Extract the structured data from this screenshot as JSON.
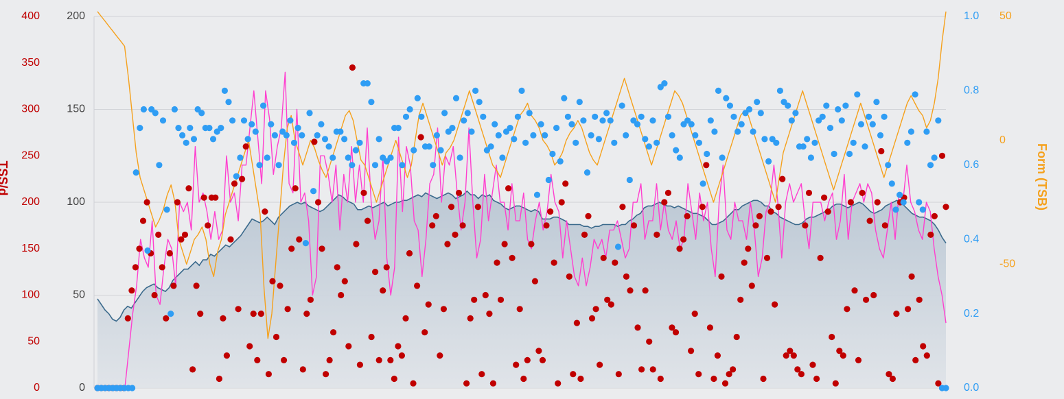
{
  "chart_data": {
    "type": "line",
    "title": "",
    "grid": true,
    "axes": {
      "tss": {
        "ticks": [
          "0",
          "50",
          "100",
          "150",
          "200",
          "250",
          "300",
          "350",
          "400"
        ],
        "range": [
          0,
          400
        ],
        "color": "#c00000",
        "label": "TSS/d"
      },
      "fitness": {
        "ticks": [
          "0",
          "50",
          "100",
          "150",
          "200"
        ],
        "range": [
          0,
          200
        ],
        "color": "#444444"
      },
      "intensity": {
        "ticks": [
          "0.0",
          "0.2",
          "0.4",
          "0.6",
          "0.8",
          "1.0"
        ],
        "range": [
          0,
          1
        ],
        "color": "#2f9df4"
      },
      "form": {
        "ticks": [
          "-50",
          "0",
          "50"
        ],
        "range": [
          -100,
          50
        ],
        "color": "#f5a11c",
        "label": "Form (TSB)"
      }
    },
    "series": [
      {
        "kind": "area",
        "axis": "fitness",
        "color": "#3b6a8c",
        "fill": "#c9d4dd",
        "values": [
          48,
          45,
          42,
          40,
          37,
          36,
          38,
          42,
          44,
          43,
          46,
          49,
          52,
          54,
          55,
          56,
          54,
          53,
          52,
          54,
          58,
          60,
          62,
          64,
          64,
          66,
          68,
          66,
          69,
          69,
          72,
          71,
          73,
          75,
          77,
          76,
          78,
          80,
          82,
          85,
          88,
          91,
          90,
          89,
          90,
          92,
          90,
          88,
          92,
          94,
          96,
          98,
          99,
          100,
          99,
          100,
          98,
          97,
          96,
          95,
          96,
          98,
          100,
          102,
          104,
          103,
          101,
          100,
          99,
          96,
          96,
          97,
          98,
          97,
          98,
          99,
          100,
          98,
          99,
          100,
          100,
          101,
          101,
          102,
          103,
          104,
          103,
          105,
          104,
          103,
          102,
          103,
          104,
          105,
          104,
          102,
          103,
          104,
          106,
          104,
          104,
          102,
          104,
          103,
          104,
          101,
          100,
          99,
          97,
          96,
          97,
          98,
          98,
          97,
          96,
          95,
          96,
          95,
          91,
          91,
          91,
          92,
          92,
          91,
          90,
          88,
          88,
          88,
          88,
          87,
          87,
          86,
          87,
          87,
          88,
          88,
          88,
          88,
          87,
          88,
          88,
          90,
          91,
          93,
          94,
          97,
          98,
          98,
          99,
          100,
          99,
          98,
          98,
          97,
          98,
          97,
          96,
          95,
          94,
          94,
          93,
          92,
          90,
          88,
          88,
          89,
          90,
          92,
          94,
          96,
          96,
          98,
          99,
          100,
          101,
          101,
          100,
          98,
          98,
          95,
          94,
          92,
          91,
          90,
          89,
          88,
          88,
          89,
          91,
          92,
          92,
          93,
          94,
          95,
          96,
          98,
          99,
          99,
          98,
          97,
          98,
          99,
          100,
          99,
          97,
          95,
          94,
          95,
          96,
          98,
          99,
          100,
          101,
          100,
          98,
          96,
          94,
          93,
          92,
          92,
          91,
          90,
          88,
          85,
          81,
          78
        ]
      },
      {
        "kind": "line",
        "axis": "tss",
        "color": "#ff3fcf",
        "values": [
          0,
          0,
          0,
          0,
          0,
          0,
          0,
          0,
          40,
          80,
          110,
          160,
          140,
          130,
          180,
          100,
          90,
          130,
          160,
          150,
          110,
          200,
          190,
          200,
          170,
          260,
          200,
          210,
          190,
          160,
          190,
          160,
          170,
          250,
          200,
          210,
          180,
          240,
          240,
          280,
          320,
          270,
          220,
          320,
          290,
          230,
          260,
          280,
          340,
          220,
          210,
          300,
          200,
          210,
          180,
          100,
          120,
          250,
          250,
          230,
          200,
          240,
          170,
          230,
          200,
          260,
          200,
          240,
          200,
          280,
          200,
          160,
          180,
          250,
          140,
          100,
          130,
          270,
          190,
          260,
          240,
          180,
          170,
          120,
          160,
          220,
          230,
          280,
          200,
          250,
          240,
          260,
          210,
          170,
          200,
          280,
          200,
          140,
          160,
          230,
          180,
          210,
          240,
          200,
          200,
          170,
          220,
          180,
          180,
          210,
          160,
          150,
          180,
          200,
          170,
          190,
          230,
          200,
          190,
          140,
          180,
          150,
          120,
          110,
          140,
          110,
          130,
          160,
          150,
          160,
          140,
          170,
          170,
          180,
          160,
          140,
          150,
          200,
          200,
          220,
          160,
          180,
          180,
          220,
          170,
          200,
          170,
          160,
          180,
          150,
          160,
          220,
          190,
          160,
          210,
          180,
          200,
          150,
          120,
          200,
          240,
          170,
          160,
          200,
          180,
          180,
          160,
          200,
          170,
          120,
          140,
          190,
          200,
          240,
          200,
          140,
          200,
          220,
          200,
          210,
          220,
          180,
          150,
          200,
          200,
          200,
          180,
          200,
          210,
          160,
          180,
          230,
          160,
          200,
          210,
          220,
          200,
          220,
          210,
          170,
          150,
          140,
          170,
          200,
          160,
          210,
          200,
          240,
          200,
          190,
          170,
          160,
          200,
          190,
          150,
          120,
          100,
          70
        ]
      },
      {
        "kind": "line",
        "axis": "form",
        "color": "#f5a11c",
        "values": [
          52,
          50,
          48,
          46,
          44,
          42,
          40,
          38,
          25,
          10,
          -5,
          -15,
          -20,
          -25,
          -30,
          -35,
          -32,
          -28,
          -22,
          -18,
          -25,
          -40,
          -45,
          -50,
          -45,
          -40,
          -38,
          -35,
          -40,
          -50,
          -55,
          -45,
          -40,
          -30,
          -25,
          -20,
          -15,
          -10,
          -5,
          0,
          -10,
          -20,
          -30,
          -60,
          -80,
          -70,
          -50,
          -30,
          -10,
          5,
          10,
          0,
          -5,
          -10,
          -5,
          0,
          -3,
          -8,
          -12,
          -15,
          -10,
          -5,
          0,
          5,
          10,
          12,
          8,
          0,
          -8,
          -10,
          -15,
          -20,
          -25,
          -20,
          -15,
          -10,
          -5,
          0,
          -5,
          -10,
          -15,
          -10,
          0,
          10,
          15,
          10,
          5,
          0,
          -5,
          -10,
          -5,
          -3,
          0,
          5,
          10,
          15,
          20,
          15,
          10,
          5,
          0,
          -5,
          -10,
          -12,
          -15,
          -10,
          -5,
          0,
          5,
          10,
          12,
          15,
          10,
          8,
          5,
          0,
          -2,
          -5,
          -10,
          -8,
          -5,
          0,
          3,
          5,
          8,
          5,
          0,
          -5,
          -8,
          -10,
          -5,
          0,
          5,
          10,
          15,
          20,
          25,
          20,
          15,
          10,
          5,
          0,
          -5,
          -10,
          -5,
          0,
          5,
          10,
          15,
          20,
          18,
          15,
          10,
          5,
          0,
          -5,
          -10,
          -15,
          -20,
          -25,
          -20,
          -15,
          -10,
          -5,
          0,
          5,
          10,
          12,
          10,
          5,
          0,
          -5,
          -10,
          -15,
          -20,
          -25,
          -15,
          -5,
          0,
          5,
          10,
          15,
          20,
          15,
          10,
          5,
          0,
          -5,
          -10,
          -15,
          -20,
          -15,
          -10,
          -5,
          0,
          5,
          10,
          15,
          10,
          5,
          0,
          -5,
          -10,
          -15,
          -10,
          -5,
          0,
          5,
          10,
          15,
          18,
          15,
          12,
          10,
          5,
          8,
          15,
          25,
          40,
          52
        ]
      },
      {
        "kind": "scatter",
        "axis": "tss",
        "color": "#c00000",
        "values": [
          0,
          0,
          0,
          0,
          0,
          0,
          0,
          0,
          75,
          105,
          130,
          150,
          180,
          200,
          145,
          100,
          165,
          130,
          75,
          145,
          110,
          200,
          160,
          165,
          215,
          20,
          110,
          80,
          205,
          175,
          205,
          205,
          10,
          75,
          35,
          160,
          220,
          85,
          225,
          260,
          45,
          80,
          30,
          80,
          190,
          15,
          115,
          55,
          110,
          30,
          85,
          150,
          215,
          160,
          20,
          80,
          95,
          265,
          200,
          150,
          15,
          30,
          60,
          130,
          100,
          115,
          45,
          345,
          155,
          25,
          210,
          180,
          55,
          125,
          30,
          105,
          130,
          30,
          10,
          45,
          35,
          75,
          145,
          5,
          110,
          270,
          60,
          90,
          175,
          185,
          35,
          85,
          155,
          195,
          165,
          210,
          175,
          5,
          75,
          95,
          195,
          15,
          100,
          80,
          5,
          135,
          95,
          155,
          215,
          140,
          25,
          85,
          10,
          30,
          155,
          115,
          40,
          30,
          175,
          190,
          135,
          5,
          200,
          220,
          120,
          15,
          70,
          10,
          165,
          185,
          75,
          85,
          25,
          140,
          95,
          90,
          135,
          15,
          195,
          120,
          105,
          175,
          65,
          20,
          105,
          50,
          20,
          165,
          10,
          200,
          210,
          65,
          60,
          150,
          160,
          185,
          40,
          80,
          15,
          195,
          240,
          65,
          10,
          35,
          120,
          5,
          15,
          20,
          55,
          95,
          135,
          150,
          110,
          175,
          185,
          10,
          140,
          190,
          90,
          195,
          225,
          35,
          40,
          35,
          20,
          15,
          175,
          210,
          25,
          10,
          140,
          205,
          190,
          55,
          5,
          40,
          35,
          85,
          200,
          105,
          30,
          210,
          95,
          180,
          100,
          200,
          255,
          175,
          15,
          10,
          80,
          200,
          205,
          85,
          120,
          30,
          95,
          45,
          35,
          165,
          185,
          5,
          250,
          195
        ]
      },
      {
        "kind": "scatter",
        "axis": "intensity",
        "color": "#2f9df4",
        "values": [
          0,
          0,
          0,
          0,
          0,
          0,
          0,
          0,
          0,
          0,
          0.58,
          0.7,
          0.75,
          0.37,
          0.75,
          0.74,
          0.6,
          0.72,
          0.48,
          0.2,
          0.75,
          0.7,
          0.68,
          0.66,
          0.7,
          0.67,
          0.75,
          0.74,
          0.7,
          0.7,
          0.67,
          0.69,
          0.7,
          0.8,
          0.77,
          0.72,
          0.57,
          0.62,
          0.72,
          0.67,
          0.71,
          0.69,
          0.6,
          0.76,
          0.62,
          0.71,
          0.68,
          0.6,
          0.69,
          0.68,
          0.72,
          0.66,
          0.7,
          0.68,
          0.39,
          0.74,
          0.53,
          0.68,
          0.71,
          0.67,
          0.65,
          0.62,
          0.69,
          0.69,
          0.67,
          0.62,
          0.6,
          0.64,
          0.66,
          0.82,
          0.82,
          0.77,
          0.6,
          0.67,
          0.62,
          0.61,
          0.62,
          0.7,
          0.7,
          0.6,
          0.73,
          0.75,
          0.64,
          0.78,
          0.73,
          0.65,
          0.65,
          0.6,
          0.68,
          0.64,
          0.74,
          0.69,
          0.7,
          0.78,
          0.62,
          0.72,
          0.74,
          0.69,
          0.8,
          0.77,
          0.73,
          0.64,
          0.65,
          0.71,
          0.68,
          0.62,
          0.69,
          0.7,
          0.67,
          0.73,
          0.8,
          0.66,
          0.74,
          0.68,
          0.52,
          0.71,
          0.68,
          0.56,
          0.63,
          0.7,
          0.61,
          0.78,
          0.73,
          0.71,
          0.66,
          0.77,
          0.72,
          0.58,
          0.68,
          0.73,
          0.67,
          0.72,
          0.74,
          0.72,
          0.66,
          0.38,
          0.76,
          0.68,
          0.56,
          0.72,
          0.71,
          0.73,
          0.67,
          0.65,
          0.72,
          0.66,
          0.81,
          0.82,
          0.73,
          0.68,
          0.64,
          0.62,
          0.71,
          0.72,
          0.71,
          0.68,
          0.66,
          0.55,
          0.63,
          0.72,
          0.69,
          0.8,
          0.62,
          0.78,
          0.76,
          0.73,
          0.69,
          0.71,
          0.74,
          0.75,
          0.69,
          0.77,
          0.74,
          0.67,
          0.61,
          0.67,
          0.66,
          0.8,
          0.77,
          0.76,
          0.72,
          0.74,
          0.65,
          0.65,
          0.67,
          0.62,
          0.66,
          0.72,
          0.73,
          0.76,
          0.7,
          0.63,
          0.75,
          0.72,
          0.76,
          0.63,
          0.66,
          0.79,
          0.71,
          0.65,
          0.73,
          0.71,
          0.77,
          0.68,
          0.73,
          0.6,
          0.55,
          0.48,
          0.52,
          0.5,
          0.66,
          0.69,
          0.79,
          0.5,
          0.48,
          0.69,
          0.6,
          0.62,
          0.72,
          0.0,
          0.0
        ]
      }
    ]
  }
}
